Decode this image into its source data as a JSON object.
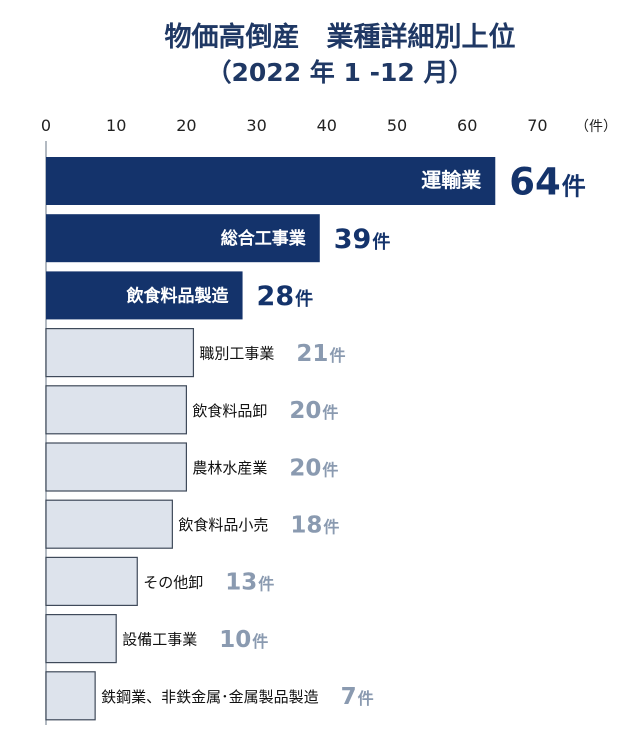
{
  "chart_data": {
    "type": "bar",
    "orientation": "horizontal",
    "title": "物価高倒産　業種詳細別上位",
    "subtitle": "（2022 年 1 -12 月）",
    "xlabel": "",
    "ylabel": "",
    "unit_label": "（件）",
    "value_suffix": "件",
    "xlim": [
      0,
      70
    ],
    "x_ticks": [
      "0",
      "10",
      "20",
      "30",
      "40",
      "50",
      "60",
      "70"
    ],
    "grid": false,
    "legend": "none",
    "categories": [
      "運輸業",
      "総合工事業",
      "飲食料品製造",
      "職別工事業",
      "飲食料品卸",
      "農林水産業",
      "飲食料品小売",
      "その他卸",
      "設備工事業",
      "鉄鋼業、非鉄金属･金属製品製造"
    ],
    "values": [
      64,
      39,
      28,
      21,
      20,
      20,
      18,
      13,
      10,
      7
    ],
    "highlighted_count": 3,
    "colors": {
      "highlight_bar": "#14336b",
      "normal_bar": "#dde3ec",
      "normal_bar_border": "#3f4a5a",
      "highlight_value": "#14336b",
      "normal_value": "#8a9ab0",
      "title": "#1f3864"
    }
  }
}
